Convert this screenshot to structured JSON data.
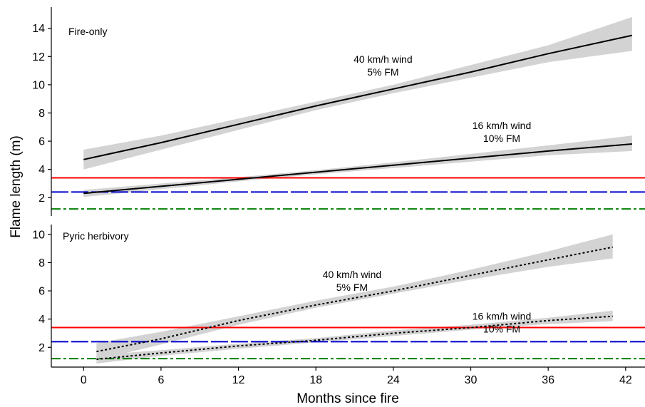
{
  "chart_data": [
    {
      "type": "line",
      "panel_label": "Fire-only",
      "xlabel": "Months since fire",
      "ylabel": "Flame length (m)",
      "xlim": [
        -2.5,
        43.5
      ],
      "ylim": [
        0.7,
        15.5
      ],
      "xticks": [
        0,
        6,
        12,
        18,
        24,
        30,
        36,
        42
      ],
      "yticks": [
        2,
        4,
        6,
        8,
        10,
        12,
        14
      ],
      "grid": false,
      "series": [
        {
          "style": "solid",
          "color": "#000000",
          "ribbon_color": "#d3d3d3",
          "x": [
            0,
            6,
            12,
            18,
            24,
            30,
            36,
            42.5
          ],
          "y": [
            4.7,
            5.9,
            7.2,
            8.5,
            9.7,
            10.9,
            12.2,
            13.5
          ],
          "lower": [
            4.0,
            5.4,
            6.8,
            8.2,
            9.4,
            10.5,
            11.6,
            12.4
          ],
          "upper": [
            5.4,
            6.4,
            7.6,
            8.8,
            10.0,
            11.4,
            12.8,
            14.8
          ]
        },
        {
          "style": "solid",
          "color": "#000000",
          "ribbon_color": "#d3d3d3",
          "x": [
            0,
            6,
            12,
            18,
            24,
            30,
            36,
            42.5
          ],
          "y": [
            2.3,
            2.8,
            3.3,
            3.8,
            4.3,
            4.8,
            5.3,
            5.8
          ],
          "lower": [
            2.05,
            2.6,
            3.15,
            3.65,
            4.1,
            4.55,
            5.0,
            5.3
          ],
          "upper": [
            2.55,
            3.0,
            3.45,
            3.95,
            4.5,
            5.1,
            5.7,
            6.4
          ]
        }
      ],
      "reference_lines": [
        {
          "y": 3.4,
          "color": "#ff0000",
          "style": "solid"
        },
        {
          "y": 2.4,
          "color": "#0000cc",
          "style": "dashed"
        },
        {
          "y": 1.2,
          "color": "#008000",
          "style": "dashdot"
        }
      ],
      "annotations": [
        {
          "lines": [
            "40 km/h wind",
            "5% FM"
          ],
          "x": 23.2,
          "y": 11.55
        },
        {
          "lines": [
            "16 km/h wind",
            "10% FM"
          ],
          "x": 32.4,
          "y": 6.85
        }
      ]
    },
    {
      "type": "line",
      "panel_label": "Pyric herbivory",
      "xlabel": "Months since fire",
      "ylabel": "Flame length (m)",
      "xlim": [
        -2.5,
        43.5
      ],
      "ylim": [
        0.6,
        10.7
      ],
      "xticks": [
        0,
        6,
        12,
        18,
        24,
        30,
        36,
        42
      ],
      "yticks": [
        2,
        4,
        6,
        8,
        10
      ],
      "grid": false,
      "series": [
        {
          "style": "dotted",
          "color": "#000000",
          "ribbon_color": "#d3d3d3",
          "x": [
            1,
            6,
            12,
            18,
            24,
            30,
            36,
            41
          ],
          "y": [
            1.7,
            2.6,
            3.9,
            5.0,
            6.0,
            7.1,
            8.2,
            9.1
          ],
          "lower": [
            1.1,
            2.2,
            3.6,
            4.8,
            5.8,
            6.8,
            7.7,
            8.3
          ],
          "upper": [
            2.3,
            3.1,
            4.2,
            5.3,
            6.3,
            7.5,
            8.8,
            10.0
          ]
        },
        {
          "style": "dotted",
          "color": "#000000",
          "ribbon_color": "#d3d3d3",
          "x": [
            1,
            6,
            12,
            18,
            24,
            30,
            36,
            41
          ],
          "y": [
            1.15,
            1.6,
            2.1,
            2.5,
            3.0,
            3.4,
            3.9,
            4.2
          ],
          "lower": [
            0.85,
            1.4,
            1.9,
            2.35,
            2.8,
            3.25,
            3.65,
            3.85
          ],
          "upper": [
            1.45,
            1.8,
            2.25,
            2.65,
            3.2,
            3.6,
            4.1,
            4.6
          ]
        }
      ],
      "reference_lines": [
        {
          "y": 3.4,
          "color": "#ff0000",
          "style": "solid"
        },
        {
          "y": 2.4,
          "color": "#0000cc",
          "style": "dashed"
        },
        {
          "y": 1.2,
          "color": "#008000",
          "style": "dashdot"
        }
      ],
      "annotations": [
        {
          "lines": [
            "40 km/h wind",
            "5% FM"
          ],
          "x": 20.8,
          "y": 6.9
        },
        {
          "lines": [
            "16 km/h wind",
            "10% FM"
          ],
          "x": 32.4,
          "y": 3.95
        }
      ]
    }
  ]
}
